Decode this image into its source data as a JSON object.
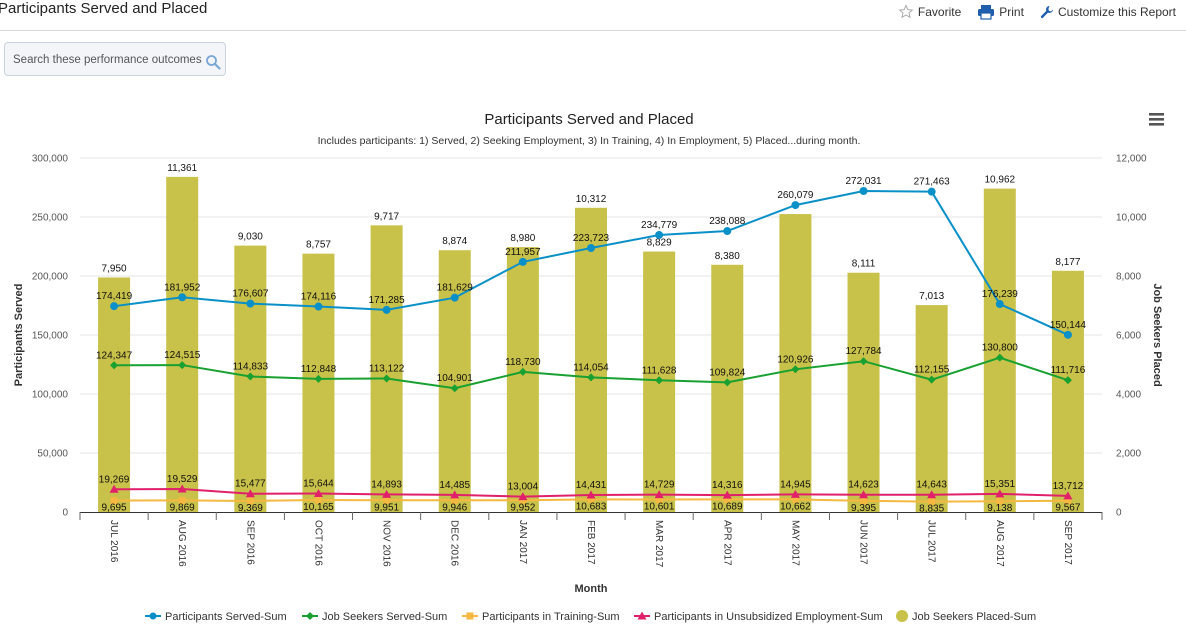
{
  "page": {
    "title": "Participants Served and Placed",
    "toolbar": {
      "favorite": "Favorite",
      "print": "Print",
      "customize": "Customize this Report"
    },
    "search": {
      "placeholder": "Search these performance outcomes"
    }
  },
  "chart_data": {
    "type": "bar",
    "title": "Participants Served and Placed",
    "subtitle": "Includes participants: 1) Served, 2) Seeking Employment, 3) In Training, 4) In Employment, 5) Placed...during month.",
    "xlabel": "Month",
    "ylabel": "Participants Served",
    "y2label": "Job Seekers Placed",
    "ylim": [
      0,
      300000
    ],
    "y2lim": [
      0,
      12000
    ],
    "yticks": [
      "0",
      "50,000",
      "100,000",
      "150,000",
      "200,000",
      "250,000",
      "300,000"
    ],
    "y2ticks": [
      "0",
      "2,000",
      "4,000",
      "6,000",
      "8,000",
      "10,000",
      "12,000"
    ],
    "grid": true,
    "legend_position": "bottom",
    "categories": [
      "JUL 2016",
      "AUG 2016",
      "SEP 2016",
      "OCT 2016",
      "NOV 2016",
      "DEC 2016",
      "JAN 2017",
      "FEB 2017",
      "MAR 2017",
      "APR 2017",
      "MAY 2017",
      "JUN 2017",
      "JUL 2017",
      "AUG 2017",
      "SEP 2017"
    ],
    "bars": {
      "name": "Job Seekers Placed-Sum",
      "axis": "right",
      "color": "#c8c14a",
      "values": [
        7950,
        11361,
        9030,
        8757,
        9717,
        8874,
        8980,
        10312,
        8829,
        8380,
        10100,
        8111,
        7013,
        10962,
        8177
      ],
      "labels": [
        "7,950",
        "11,361",
        "9,030",
        "8,757",
        "9,717",
        "8,874",
        "8,980",
        "10,312",
        "8,829",
        "8,380",
        "",
        "8,111",
        "7,013",
        "10,962",
        "8,177"
      ]
    },
    "series": [
      {
        "name": "Participants Served-Sum",
        "color": "#0a90c8",
        "marker": "circle",
        "values": [
          174419,
          181952,
          176607,
          174116,
          171285,
          181629,
          211957,
          223723,
          234779,
          238088,
          260079,
          272031,
          271463,
          176239,
          150144
        ],
        "labels": [
          "174,419",
          "181,952",
          "176,607",
          "174,116",
          "171,285",
          "181,629",
          "211,957",
          "223,723",
          "234,779",
          "238,088",
          "260,079",
          "272,031",
          "271,463",
          "176,239",
          "150,144"
        ]
      },
      {
        "name": "Job Seekers Served-Sum",
        "color": "#18a030",
        "marker": "diamond",
        "values": [
          124347,
          124515,
          114833,
          112848,
          113122,
          104901,
          118730,
          114054,
          111628,
          109824,
          120926,
          127784,
          112155,
          130800,
          111716
        ],
        "labels": [
          "124,347",
          "124,515",
          "114,833",
          "112,848",
          "113,122",
          "104,901",
          "118,730",
          "114,054",
          "111,628",
          "109,824",
          "120,926",
          "127,784",
          "112,155",
          "130,800",
          "111,716"
        ]
      },
      {
        "name": "Participants in Training-Sum",
        "color": "#f5b840",
        "marker": "square",
        "values": [
          9695,
          9869,
          9369,
          10165,
          9951,
          9946,
          9952,
          10683,
          10601,
          10689,
          10662,
          9395,
          8835,
          9138,
          9567
        ],
        "labels": [
          "9,695",
          "9,869",
          "9,369",
          "10,165",
          "9,951",
          "9,946",
          "9,952",
          "10,683",
          "10,601",
          "10,689",
          "10,662",
          "9,395",
          "8,835",
          "9,138",
          "9,567"
        ]
      },
      {
        "name": "Participants in Unsubsidized Employment-Sum",
        "color": "#e0206a",
        "marker": "triangle",
        "values": [
          19269,
          19529,
          15477,
          15644,
          14893,
          14485,
          13004,
          14431,
          14729,
          14316,
          14945,
          14623,
          14643,
          15351,
          13712
        ],
        "labels": [
          "19,269",
          "19,529",
          "15,477",
          "15,644",
          "14,893",
          "14,485",
          "13,004",
          "14,431",
          "14,729",
          "14,316",
          "14,945",
          "14,623",
          "14,643",
          "15,351",
          "13,712"
        ]
      }
    ]
  }
}
